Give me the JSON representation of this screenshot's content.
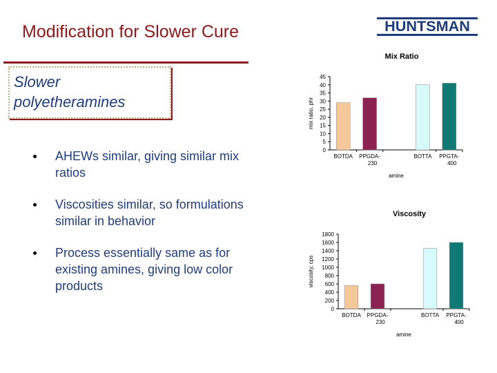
{
  "slide": {
    "title": "Modification for Slower Cure",
    "logo_text": "HUNTSMAN",
    "subtitle": "Slower polyetheramines",
    "bullets": [
      "AHEWs similar, giving similar mix ratios",
      "Viscosities similar, so formulations similar in behavior",
      "Process essentially same as for existing amines, giving low color products"
    ],
    "colors": {
      "title": "#8b1a1a",
      "text": "#1f3d7a",
      "logo": "#1f3d7a"
    }
  },
  "chart_data": [
    {
      "type": "bar",
      "title": "Mix Ratio",
      "xlabel": "amine",
      "ylabel": "mix ratio, phr",
      "categories": [
        "BOTDA",
        "PPGDA-230",
        "",
        "BOTTA",
        "PPGTA-400"
      ],
      "values": [
        29,
        32,
        null,
        40,
        41
      ],
      "ylim": [
        0,
        45
      ],
      "yticks": [
        0,
        5,
        10,
        15,
        20,
        25,
        30,
        35,
        40,
        45
      ],
      "bar_colors": [
        "#f5c89a",
        "#8b2252",
        null,
        "#d7fbfb",
        "#0e7a73"
      ],
      "grid": false
    },
    {
      "type": "bar",
      "title": "Viscosity",
      "xlabel": "amine",
      "ylabel": "viscosity, cps",
      "categories": [
        "BOTDA",
        "PPGDA-230",
        "",
        "BOTTA",
        "PPGTA-400"
      ],
      "values": [
        560,
        600,
        null,
        1460,
        1600
      ],
      "ylim": [
        0,
        1800
      ],
      "yticks": [
        0,
        200,
        400,
        600,
        800,
        1000,
        1200,
        1400,
        1600,
        1800
      ],
      "bar_colors": [
        "#f5c89a",
        "#8b2252",
        null,
        "#d7fbfb",
        "#0e7a73"
      ],
      "grid": false
    }
  ]
}
